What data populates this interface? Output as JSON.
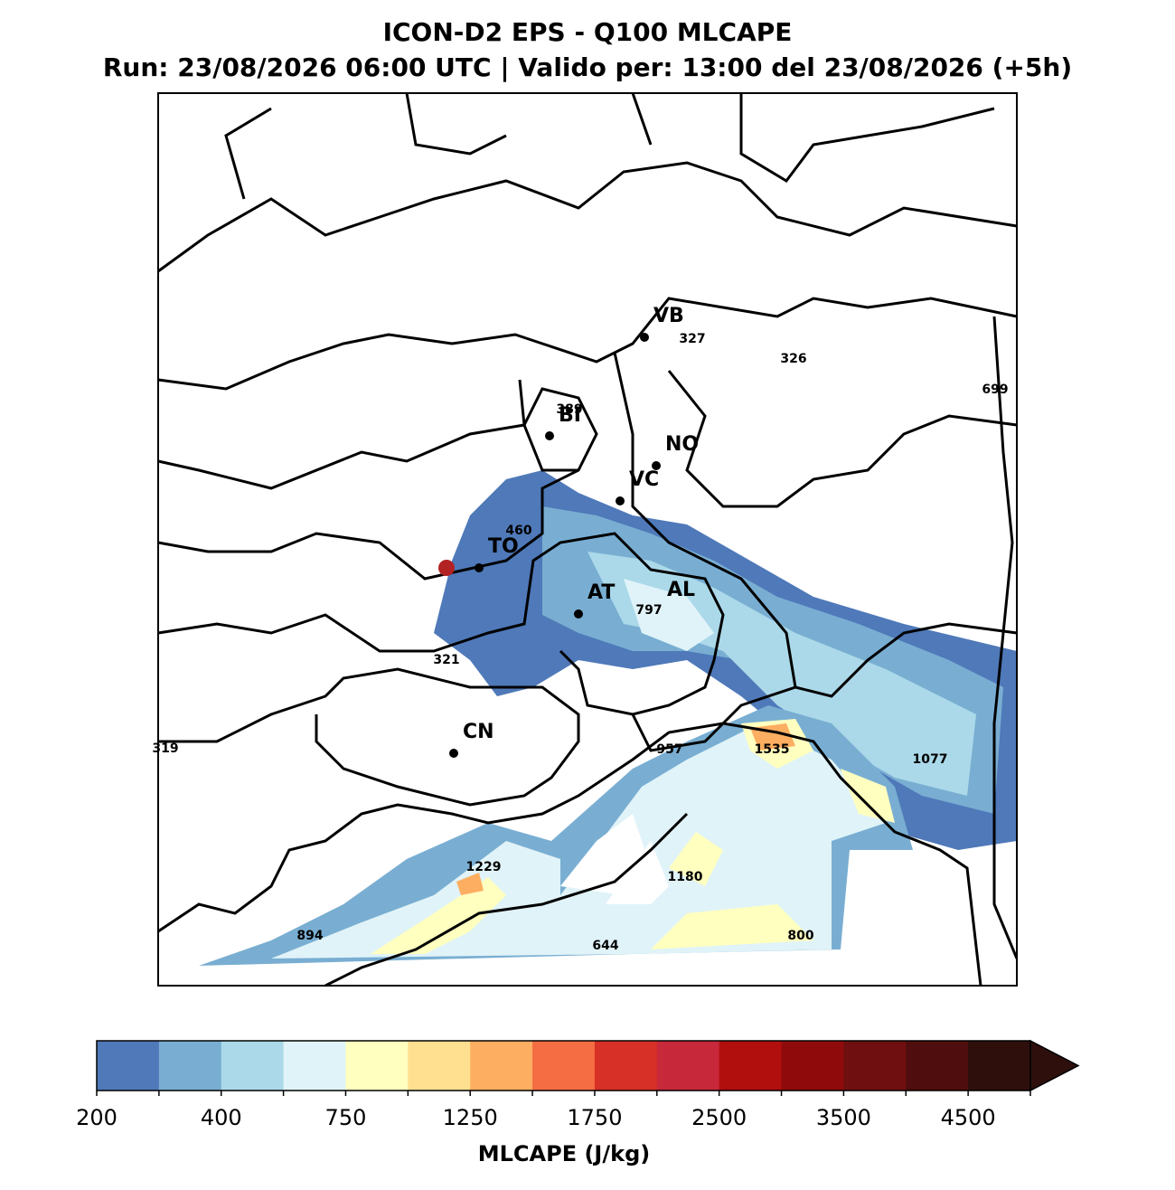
{
  "header": {
    "title": "ICON-D2 EPS - Q100 MLCAPE",
    "subtitle": "Run: 23/08/2026 06:00 UTC | Valido per: 13:00 del 23/08/2026 (+5h)"
  },
  "map": {
    "cities": [
      "VB",
      "BI",
      "NO",
      "VC",
      "TO",
      "AT",
      "AL",
      "CN"
    ],
    "cape_labels": [
      327,
      326,
      699,
      389,
      460,
      797,
      321,
      319,
      957,
      1535,
      1077,
      1229,
      1180,
      894,
      644,
      800
    ]
  },
  "colorbar": {
    "label": "MLCAPE (J/kg)",
    "levels": [
      200,
      300,
      400,
      500,
      750,
      1000,
      1250,
      1500,
      1750,
      2000,
      2500,
      3000,
      3500,
      4000,
      4500,
      5000
    ],
    "colors": [
      "#4f79b9",
      "#79aed2",
      "#abd9e9",
      "#e0f3f8",
      "#ffffbf",
      "#fee090",
      "#fdae61",
      "#f46d43",
      "#d73027",
      "#c7283a",
      "#b10e0e",
      "#8f0b0b",
      "#700f0f",
      "#4f0d0d",
      "#2e0f0c"
    ],
    "ticks": [
      200,
      400,
      750,
      1250,
      1750,
      2500,
      3500,
      4500
    ]
  }
}
